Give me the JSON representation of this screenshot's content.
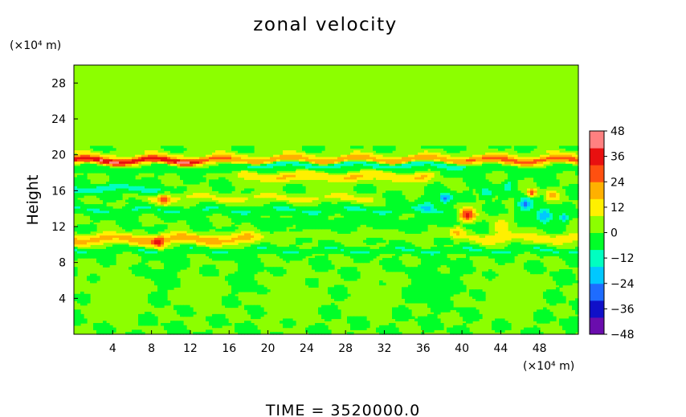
{
  "chart_data": {
    "type": "heatmap",
    "title": "zonal velocity",
    "xlabel": "",
    "ylabel": "Height",
    "x_unit_label": "(×10⁴ m)",
    "y_unit_label": "(×10⁴ m)",
    "footer": "TIME = 3520000.0",
    "xlim": [
      0,
      52
    ],
    "ylim": [
      0,
      30
    ],
    "x_ticks": [
      4,
      8,
      12,
      16,
      20,
      24,
      28,
      32,
      36,
      40,
      44,
      48
    ],
    "y_ticks": [
      4,
      8,
      12,
      16,
      20,
      24,
      28
    ],
    "x_tick_labels": [
      "4",
      "8",
      "12",
      "16",
      "20",
      "24",
      "28",
      "32",
      "36",
      "40",
      "44",
      "48"
    ],
    "y_tick_labels": [
      "4",
      "8",
      "12",
      "16",
      "20",
      "24",
      "28"
    ],
    "colorbar": {
      "min": -48,
      "max": 48,
      "ticks": [
        48,
        36,
        24,
        12,
        0,
        -12,
        -24,
        -36,
        -48
      ],
      "tick_labels": [
        "48",
        "36",
        "24",
        "12",
        "0",
        "−12",
        "−24",
        "−36",
        "−48"
      ],
      "colors": [
        "#6a0dad",
        "#1010c8",
        "#1e6cff",
        "#00c8ff",
        "#00ffc0",
        "#00ff28",
        "#8cff00",
        "#fff000",
        "#ffb000",
        "#ff5010",
        "#e81010",
        "#ff8080"
      ]
    },
    "bands": [
      {
        "y": 19.4,
        "w": 0.45,
        "v": 26,
        "x0": 0,
        "x1": 52
      },
      {
        "y": 19.3,
        "w": 0.3,
        "v": 14,
        "x0": 0,
        "x1": 12
      },
      {
        "y": 19.0,
        "w": 0.35,
        "v": -20,
        "x0": 18,
        "x1": 40
      },
      {
        "y": 20.2,
        "w": 0.25,
        "v": 6,
        "x0": 0,
        "x1": 52
      },
      {
        "y": 18.4,
        "w": 0.3,
        "v": -6,
        "x0": 0,
        "x1": 52
      },
      {
        "y": 17.6,
        "w": 0.55,
        "v": 16,
        "x0": 18,
        "x1": 36
      },
      {
        "y": 16.2,
        "w": 0.4,
        "v": -14,
        "x0": 0,
        "x1": 8
      },
      {
        "y": 15.2,
        "w": 0.45,
        "v": 10,
        "x0": 8,
        "x1": 30
      },
      {
        "y": 13.8,
        "w": 0.4,
        "v": -8,
        "x0": 0,
        "x1": 40
      },
      {
        "y": 11.0,
        "w": 0.35,
        "v": 6,
        "x0": 0,
        "x1": 52
      },
      {
        "y": 10.5,
        "w": 0.5,
        "v": 18,
        "x0": 0,
        "x1": 18
      },
      {
        "y": 10.6,
        "w": 0.45,
        "v": 10,
        "x0": 42,
        "x1": 52
      },
      {
        "y": 9.3,
        "w": 0.3,
        "v": -8,
        "x0": 0,
        "x1": 52
      },
      {
        "y": 12.4,
        "w": 0.4,
        "v": -6,
        "x0": 20,
        "x1": 40
      }
    ],
    "blobs": [
      {
        "x": 40.5,
        "y": 13.4,
        "r": 0.8,
        "v": 38
      },
      {
        "x": 38.3,
        "y": 15.2,
        "r": 0.6,
        "v": -26
      },
      {
        "x": 46.5,
        "y": 14.5,
        "r": 0.7,
        "v": -26
      },
      {
        "x": 48.5,
        "y": 13.2,
        "r": 0.8,
        "v": -24
      },
      {
        "x": 47.2,
        "y": 15.8,
        "r": 0.45,
        "v": 30
      },
      {
        "x": 49.3,
        "y": 15.5,
        "r": 0.6,
        "v": 22
      },
      {
        "x": 42.5,
        "y": 15.8,
        "r": 0.55,
        "v": -18
      },
      {
        "x": 44.8,
        "y": 16.5,
        "r": 0.5,
        "v": -14
      },
      {
        "x": 50.5,
        "y": 13.0,
        "r": 0.45,
        "v": -18
      },
      {
        "x": 9.3,
        "y": 15.0,
        "r": 0.6,
        "v": 20
      },
      {
        "x": 8.7,
        "y": 10.2,
        "r": 0.6,
        "v": 24
      },
      {
        "x": 36.5,
        "y": 14.3,
        "r": 0.8,
        "v": -12
      },
      {
        "x": 39.5,
        "y": 11.5,
        "r": 0.7,
        "v": 14
      },
      {
        "x": 44.0,
        "y": 12.0,
        "r": 0.9,
        "v": 12
      },
      {
        "x": 4.5,
        "y": 4.5,
        "r": 2.6,
        "v": 5
      },
      {
        "x": 13.5,
        "y": 4.5,
        "r": 2.2,
        "v": 3
      },
      {
        "x": 22.0,
        "y": 4.2,
        "r": 2.4,
        "v": 5
      },
      {
        "x": 31.0,
        "y": 4.5,
        "r": 2.2,
        "v": 3
      },
      {
        "x": 37.0,
        "y": 5.8,
        "r": 2.0,
        "v": -3
      },
      {
        "x": 45.0,
        "y": 4.5,
        "r": 2.4,
        "v": 5
      },
      {
        "x": 9.0,
        "y": 6.5,
        "r": 1.8,
        "v": -2
      },
      {
        "x": 18.0,
        "y": 6.0,
        "r": 1.8,
        "v": -2
      }
    ]
  }
}
